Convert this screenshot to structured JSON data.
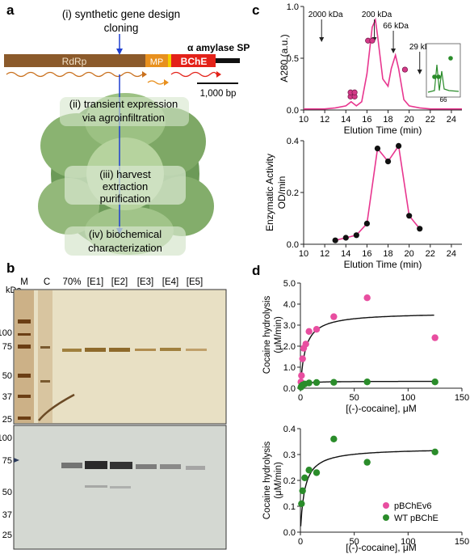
{
  "panels": {
    "a": {
      "letter": "a",
      "step1": "(i) synthetic gene design",
      "step1b": "cloning",
      "signal_peptide": "α amylase SP",
      "gene_rdrp": "RdRp",
      "gene_mp": "MP",
      "gene_bche": "BChE",
      "scale_bar": "1,000 bp",
      "step2a": "(ii) transient expression",
      "step2b": "via agroinfiltration",
      "step3a": "(iii) harvest",
      "step3b": "extraction",
      "step3c": "purification",
      "step4a": "(iv) biochemical",
      "step4b": "characterization",
      "colors": {
        "rdrp": "#8b5a2b",
        "mp": "#e8901e",
        "bche": "#e32219",
        "arrow": "#1f3fd1",
        "leaf": "#5f8f4e"
      }
    },
    "b": {
      "letter": "b",
      "kda_label": "kDa",
      "lane_labels": [
        "M",
        "C",
        "70%",
        "[E1]",
        "[E2]",
        "[E3]",
        "[E4]",
        "[E5]"
      ],
      "top_markers": [
        "100",
        "75",
        "50",
        "37",
        "25"
      ],
      "bottom_markers": [
        "100",
        "75",
        "50",
        "37",
        "25"
      ]
    },
    "c": {
      "letter": "c",
      "top_chart": {
        "ylabel": "A280 (a.u.)",
        "xlabel": "Elution Time (min)",
        "xticks": [
          "10",
          "12",
          "14",
          "16",
          "18",
          "20",
          "22",
          "24"
        ],
        "yticks": [
          "0.0",
          "0.5",
          "1.0"
        ],
        "mw_labels": [
          "2000 kDa",
          "200 kDa",
          "66 kDa",
          "29 kDa"
        ],
        "inset_label": "66"
      },
      "bottom_chart": {
        "ylabel_a": "Enzymatic Activity",
        "ylabel_b": "OD/min",
        "xlabel": "Elution Time (min)",
        "xticks": [
          "10",
          "12",
          "14",
          "16",
          "18",
          "20",
          "22",
          "24"
        ],
        "yticks": [
          "0.0",
          "0.2",
          "0.4"
        ]
      }
    },
    "d": {
      "letter": "d",
      "top_chart": {
        "ylabel_a": "Cocaine hydrolysis",
        "ylabel_b": "(μM/min)",
        "xlabel": "[(-)-cocaine], μM",
        "xticks": [
          "0",
          "50",
          "100",
          "150"
        ],
        "yticks": [
          "0.0",
          "1.0",
          "2.0",
          "3.0",
          "4.0",
          "5.0"
        ]
      },
      "bottom_chart": {
        "ylabel_a": "Cocaine hydrolysis",
        "ylabel_b": "(μM/min)",
        "xlabel": "[(-)-cocaine], μM",
        "xticks": [
          "0",
          "50",
          "100",
          "150"
        ],
        "yticks": [
          "0.0",
          "0.1",
          "0.2",
          "0.3",
          "0.4"
        ],
        "legend": [
          "pBChEv6",
          "WT pBChE"
        ]
      }
    }
  },
  "chart_data": [
    {
      "type": "line",
      "panel": "c-top",
      "xlabel": "Elution Time (min)",
      "ylabel": "A280 (a.u.)",
      "xlim": [
        10,
        25
      ],
      "ylim": [
        0,
        1.0
      ],
      "series": [
        {
          "x": [
            10,
            12,
            13,
            14,
            14.5,
            15,
            15.5,
            16,
            16.5,
            16.8,
            17,
            17.5,
            18,
            18.3,
            18.7,
            19,
            19.5,
            20,
            21,
            22,
            23,
            24,
            25
          ],
          "y": [
            0.01,
            0.01,
            0.02,
            0.04,
            0.08,
            0.04,
            0.08,
            0.35,
            0.8,
            0.87,
            0.72,
            0.3,
            0.23,
            0.4,
            0.53,
            0.4,
            0.1,
            0.04,
            0.02,
            0.01,
            0.01,
            0.01,
            0.01
          ]
        }
      ],
      "color": "#e8368f"
    },
    {
      "type": "line",
      "panel": "c-bottom",
      "xlabel": "Elution Time (min)",
      "ylabel": "Enzymatic Activity OD/min",
      "xlim": [
        10,
        25
      ],
      "ylim": [
        0,
        0.4
      ],
      "series": [
        {
          "x": [
            13,
            14,
            15,
            16,
            17,
            18,
            19,
            20,
            21
          ],
          "y": [
            0.015,
            0.025,
            0.035,
            0.08,
            0.37,
            0.32,
            0.38,
            0.11,
            0.06
          ]
        }
      ],
      "color": "#e8368f"
    },
    {
      "type": "scatter",
      "panel": "d-top",
      "xlabel": "[(-)-cocaine], μM",
      "ylabel": "Cocaine hydrolysis (μM/min)",
      "xlim": [
        0,
        150
      ],
      "ylim": [
        0,
        5
      ],
      "series": [
        {
          "name": "pBChEv6",
          "x": [
            0.5,
            1,
            2,
            3,
            5,
            8,
            15,
            31,
            62,
            125
          ],
          "y": [
            0.3,
            0.6,
            1.4,
            1.9,
            2.1,
            2.7,
            2.8,
            3.4,
            4.3,
            2.4
          ],
          "color": "#e84ea0"
        },
        {
          "name": "WT pBChE",
          "x": [
            0.5,
            1,
            2,
            4,
            8,
            15,
            31,
            62,
            125
          ],
          "y": [
            0.05,
            0.1,
            0.15,
            0.2,
            0.25,
            0.27,
            0.28,
            0.3,
            0.3
          ],
          "color": "#2a8c2a"
        }
      ],
      "fits": [
        {
          "vmax": 3.6,
          "km": 4.5
        },
        {
          "vmax": 0.33,
          "km": 2.5
        }
      ]
    },
    {
      "type": "scatter",
      "panel": "d-bottom",
      "xlabel": "[(-)-cocaine], μM",
      "ylabel": "Cocaine hydrolysis (μM/min)",
      "xlim": [
        0,
        150
      ],
      "ylim": [
        0,
        0.4
      ],
      "series": [
        {
          "name": "WT pBChE",
          "x": [
            1,
            2,
            4,
            8,
            15,
            31,
            62,
            125
          ],
          "y": [
            0.11,
            0.16,
            0.21,
            0.24,
            0.23,
            0.36,
            0.27,
            0.31
          ],
          "color": "#2a8c2a"
        }
      ],
      "fits": [
        {
          "vmax": 0.325,
          "km": 4.0
        }
      ]
    }
  ]
}
